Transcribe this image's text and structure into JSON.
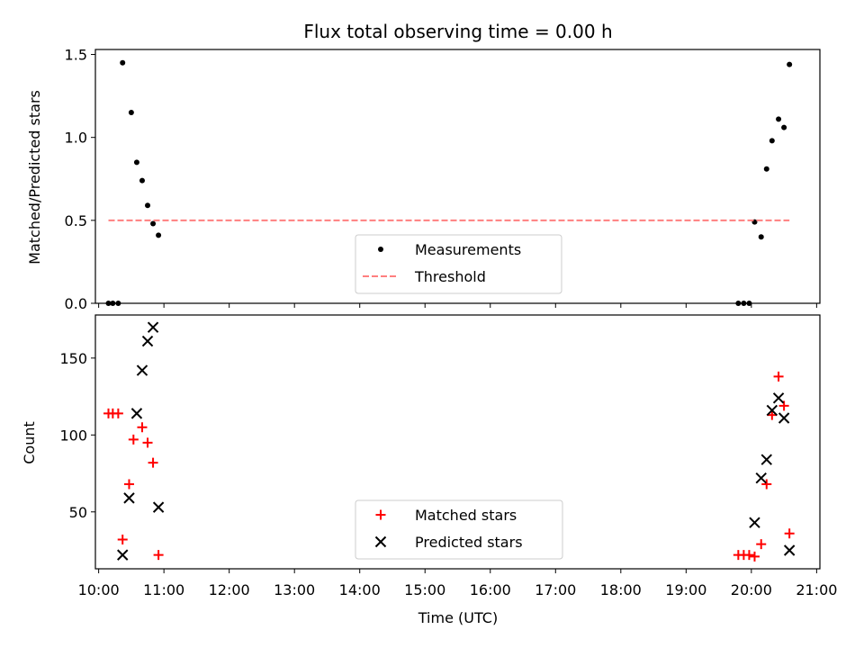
{
  "chart_data": [
    {
      "type": "scatter",
      "title": "Flux total observing time = 0.00 h",
      "xlabel": "",
      "ylabel": "Matched/Predicted stars",
      "xlim": [
        "09:57",
        "21:03"
      ],
      "ylim": [
        0,
        1.53
      ],
      "yticks": [
        "0.0",
        "0.5",
        "1.0",
        "1.5"
      ],
      "xticks": [
        "10:00",
        "11:00",
        "12:00",
        "13:00",
        "14:00",
        "15:00",
        "16:00",
        "17:00",
        "18:00",
        "19:00",
        "20:00",
        "21:00"
      ],
      "show_xtick_labels": false,
      "legend_position": "lower center",
      "series": [
        {
          "name": "Measurements",
          "marker": "dot",
          "color": "#000000",
          "points": [
            [
              "10:09",
              0.0
            ],
            [
              "10:13",
              0.0
            ],
            [
              "10:18",
              0.0
            ],
            [
              "10:22",
              1.45
            ],
            [
              "10:30",
              1.15
            ],
            [
              "10:35",
              0.85
            ],
            [
              "10:40",
              0.74
            ],
            [
              "10:45",
              0.59
            ],
            [
              "10:50",
              0.48
            ],
            [
              "10:55",
              0.41
            ],
            [
              "19:48",
              0.0
            ],
            [
              "19:53",
              0.0
            ],
            [
              "19:58",
              0.0
            ],
            [
              "20:03",
              0.49
            ],
            [
              "20:09",
              0.4
            ],
            [
              "20:14",
              0.81
            ],
            [
              "20:19",
              0.98
            ],
            [
              "20:25",
              1.11
            ],
            [
              "20:30",
              1.06
            ],
            [
              "20:35",
              1.44
            ]
          ]
        },
        {
          "name": "Threshold",
          "line": "dashed",
          "color": "#ff7f7f",
          "points": [
            [
              "10:09",
              0.5
            ],
            [
              "20:35",
              0.5
            ]
          ]
        }
      ]
    },
    {
      "type": "scatter",
      "title": "",
      "xlabel": "Time (UTC)",
      "ylabel": "Count",
      "xlim": [
        "09:57",
        "21:03"
      ],
      "ylim": [
        13,
        178
      ],
      "yticks": [
        "50",
        "100",
        "150"
      ],
      "xticks": [
        "10:00",
        "11:00",
        "12:00",
        "13:00",
        "14:00",
        "15:00",
        "16:00",
        "17:00",
        "18:00",
        "19:00",
        "20:00",
        "21:00"
      ],
      "show_xtick_labels": true,
      "legend_position": "lower center",
      "series": [
        {
          "name": "Matched stars",
          "marker": "plus",
          "color": "#ff0000",
          "points": [
            [
              "10:09",
              114
            ],
            [
              "10:13",
              114
            ],
            [
              "10:18",
              114
            ],
            [
              "10:22",
              32
            ],
            [
              "10:28",
              68
            ],
            [
              "10:32",
              97
            ],
            [
              "10:40",
              105
            ],
            [
              "10:45",
              95
            ],
            [
              "10:50",
              82
            ],
            [
              "10:55",
              22
            ],
            [
              "19:48",
              22
            ],
            [
              "19:53",
              22
            ],
            [
              "19:58",
              22
            ],
            [
              "20:03",
              21
            ],
            [
              "20:09",
              29
            ],
            [
              "20:14",
              68
            ],
            [
              "20:19",
              113
            ],
            [
              "20:25",
              138
            ],
            [
              "20:30",
              119
            ],
            [
              "20:35",
              36
            ]
          ]
        },
        {
          "name": "Predicted stars",
          "marker": "x",
          "color": "#000000",
          "points": [
            [
              "10:22",
              22
            ],
            [
              "10:28",
              59
            ],
            [
              "10:35",
              114
            ],
            [
              "10:40",
              142
            ],
            [
              "10:45",
              161
            ],
            [
              "10:50",
              170
            ],
            [
              "10:55",
              53
            ],
            [
              "20:03",
              43
            ],
            [
              "20:09",
              72
            ],
            [
              "20:14",
              84
            ],
            [
              "20:19",
              116
            ],
            [
              "20:25",
              124
            ],
            [
              "20:30",
              111
            ],
            [
              "20:35",
              25
            ]
          ]
        }
      ]
    }
  ]
}
